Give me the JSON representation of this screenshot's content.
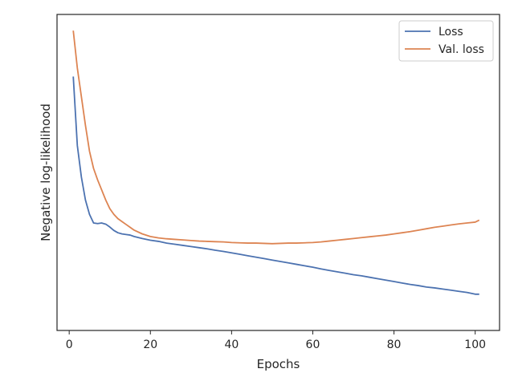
{
  "chart_data": {
    "type": "line",
    "title": "",
    "xlabel": "Epochs",
    "ylabel": "Negative log-likelihood",
    "xlim": [
      -3,
      106
    ],
    "ylim": [
      0,
      100
    ],
    "y_ticks_shown": false,
    "x_ticks": [
      0,
      20,
      40,
      60,
      80,
      100
    ],
    "grid": false,
    "legend_position": "top-right",
    "series": [
      {
        "name": "Loss",
        "color": "#4c72b0",
        "x": [
          1,
          2,
          3,
          4,
          5,
          6,
          7,
          8,
          9,
          10,
          11,
          12,
          13,
          14,
          15,
          16,
          18,
          20,
          22,
          24,
          26,
          28,
          30,
          32,
          34,
          36,
          38,
          40,
          42,
          44,
          46,
          48,
          50,
          52,
          54,
          56,
          58,
          60,
          62,
          64,
          66,
          68,
          70,
          72,
          74,
          76,
          78,
          80,
          82,
          84,
          86,
          88,
          90,
          92,
          94,
          96,
          98,
          100,
          101
        ],
        "y": [
          82,
          58,
          47,
          39,
          34,
          31,
          30.8,
          31,
          30.6,
          29.6,
          28.4,
          27.6,
          27.2,
          27,
          26.8,
          26.3,
          25.6,
          25,
          24.6,
          24,
          23.6,
          23.2,
          22.8,
          22.4,
          22,
          21.5,
          21.1,
          20.6,
          20.1,
          19.6,
          19.1,
          18.6,
          18.1,
          17.6,
          17.1,
          16.6,
          16.1,
          15.6,
          15,
          14.5,
          14,
          13.5,
          13,
          12.6,
          12.1,
          11.6,
          11.1,
          10.6,
          10.1,
          9.6,
          9.2,
          8.7,
          8.4,
          8,
          7.6,
          7.2,
          6.8,
          6.2,
          6.2
        ]
      },
      {
        "name": "Val. loss",
        "color": "#dd8452",
        "x": [
          1,
          2,
          3,
          4,
          5,
          6,
          7,
          8,
          9,
          10,
          11,
          12,
          13,
          14,
          15,
          16,
          18,
          20,
          22,
          24,
          26,
          28,
          30,
          32,
          34,
          36,
          38,
          40,
          42,
          44,
          46,
          48,
          50,
          52,
          54,
          56,
          58,
          60,
          62,
          64,
          66,
          68,
          70,
          72,
          74,
          76,
          78,
          80,
          82,
          84,
          86,
          88,
          90,
          92,
          94,
          96,
          98,
          100,
          101
        ],
        "y": [
          98,
          85,
          75,
          65,
          56,
          50,
          46,
          42.5,
          39,
          36,
          34,
          32.5,
          31.5,
          30.5,
          29.5,
          28.5,
          27.2,
          26.3,
          25.8,
          25.5,
          25.3,
          25.1,
          24.9,
          24.7,
          24.6,
          24.5,
          24.4,
          24.2,
          24.1,
          24,
          24,
          23.9,
          23.8,
          23.9,
          24,
          24,
          24.1,
          24.2,
          24.4,
          24.7,
          25,
          25.3,
          25.6,
          25.9,
          26.2,
          26.5,
          26.8,
          27.2,
          27.6,
          28,
          28.5,
          29,
          29.5,
          29.9,
          30.3,
          30.7,
          31,
          31.3,
          32
        ]
      }
    ]
  }
}
